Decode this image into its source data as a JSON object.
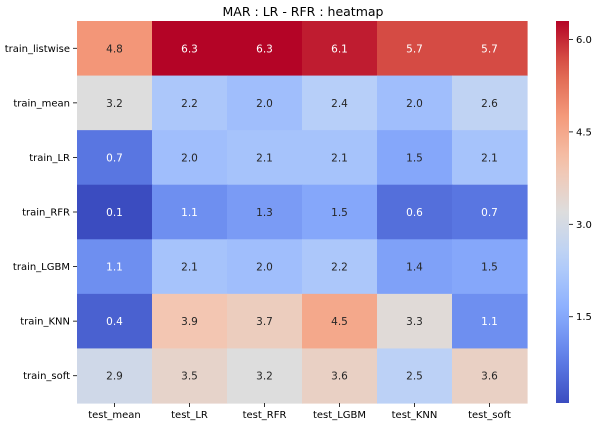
{
  "chart_data": {
    "type": "heatmap",
    "title": "MAR : LR - RFR : heatmap",
    "xlabel": "",
    "ylabel": "",
    "row_labels": [
      "train_listwise",
      "train_mean",
      "train_LR",
      "train_RFR",
      "train_LGBM",
      "train_KNN",
      "train_soft"
    ],
    "col_labels": [
      "test_mean",
      "test_LR",
      "test_RFR",
      "test_LGBM",
      "test_KNN",
      "test_soft"
    ],
    "values": [
      [
        4.8,
        6.3,
        6.3,
        6.1,
        5.7,
        5.7
      ],
      [
        3.2,
        2.2,
        2.0,
        2.4,
        2.0,
        2.6
      ],
      [
        0.7,
        2.0,
        2.1,
        2.1,
        1.5,
        2.1
      ],
      [
        0.1,
        1.1,
        1.3,
        1.5,
        0.6,
        0.7
      ],
      [
        1.1,
        2.1,
        2.0,
        2.2,
        1.4,
        1.5
      ],
      [
        0.4,
        3.9,
        3.7,
        4.5,
        3.3,
        1.1
      ],
      [
        2.9,
        3.5,
        3.2,
        3.6,
        2.5,
        3.6
      ]
    ],
    "colormap": "coolwarm",
    "vmin": 0.1,
    "vmax": 6.3,
    "colorbar": {
      "ticks": [
        1.5,
        3.0,
        4.5,
        6.0
      ],
      "tick_labels": [
        "1.5",
        "3.0",
        "4.5",
        "6.0"
      ],
      "placement": "right"
    },
    "grid": false,
    "legend": "none"
  }
}
